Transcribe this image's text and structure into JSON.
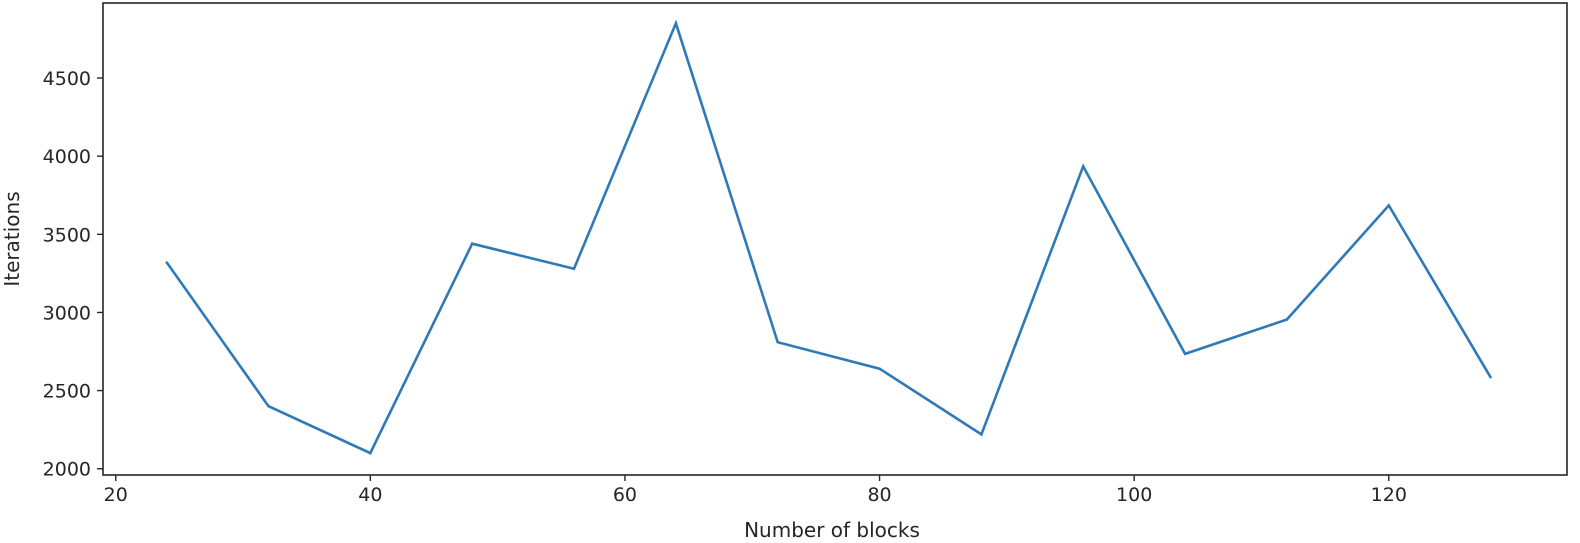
{
  "chart_data": {
    "type": "line",
    "title": "",
    "xlabel": "Number of blocks",
    "ylabel": "Iterations",
    "xlim": [
      19,
      134
    ],
    "ylim": [
      1960,
      4980
    ],
    "xticks": [
      20,
      40,
      60,
      80,
      100,
      120
    ],
    "yticks": [
      2000,
      2500,
      3000,
      3500,
      4000,
      4500
    ],
    "grid": false,
    "legend": "none",
    "series": [
      {
        "color": "#2e7ab8",
        "x": [
          24,
          32,
          40,
          48,
          56,
          64,
          72,
          80,
          88,
          96,
          104,
          112,
          120,
          128
        ],
        "y": [
          3320,
          2400,
          2100,
          3440,
          3280,
          4850,
          2810,
          2640,
          2220,
          3935,
          2735,
          2955,
          3685,
          2585
        ]
      }
    ]
  }
}
